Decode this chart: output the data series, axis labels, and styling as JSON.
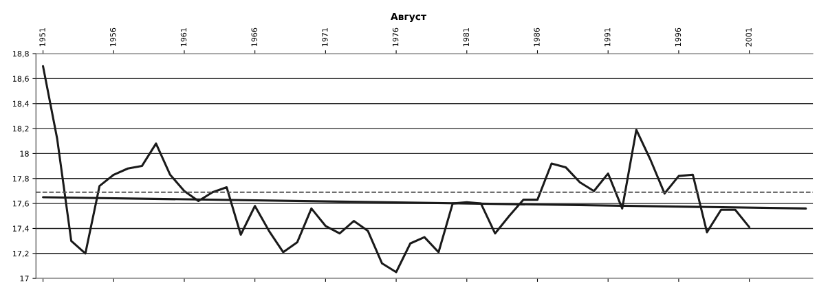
{
  "chart_data": {
    "type": "line",
    "title": "Август",
    "x": [
      1951,
      1952,
      1953,
      1954,
      1955,
      1956,
      1957,
      1958,
      1959,
      1960,
      1961,
      1962,
      1963,
      1964,
      1965,
      1966,
      1967,
      1968,
      1969,
      1970,
      1971,
      1972,
      1973,
      1974,
      1975,
      1976,
      1977,
      1978,
      1979,
      1980,
      1981,
      1982,
      1983,
      1984,
      1985,
      1986,
      1987,
      1988,
      1989,
      1990,
      1991,
      1992,
      1993,
      1994,
      1995,
      1996,
      1997,
      1998,
      1999,
      2000,
      2001
    ],
    "series": [
      {
        "color": "#1a1a1a",
        "line_style": "solid",
        "values": [
          18.7,
          18.12,
          17.3,
          17.2,
          17.74,
          17.83,
          17.88,
          17.9,
          18.08,
          17.83,
          17.7,
          17.62,
          17.69,
          17.73,
          17.35,
          17.58,
          17.38,
          17.21,
          17.29,
          17.56,
          17.42,
          17.36,
          17.46,
          17.38,
          17.12,
          17.05,
          17.28,
          17.33,
          17.21,
          17.6,
          17.61,
          17.6,
          17.36,
          17.5,
          17.63,
          17.63,
          17.92,
          17.89,
          17.77,
          17.7,
          17.84,
          17.56,
          18.19,
          17.95,
          17.68,
          17.82,
          17.83,
          17.37,
          17.55,
          17.55,
          17.41
        ]
      },
      {
        "type": "line",
        "color": "#1a1a1a",
        "line_style": "solid",
        "x": [
          1951,
          2005
        ],
        "values": [
          17.65,
          17.56
        ]
      }
    ],
    "ref_lines": [
      {
        "axis": "y",
        "value": 17.69,
        "color": "#555555",
        "line_style": "dashed"
      }
    ],
    "xlim": [
      1950.5,
      2005.5
    ],
    "xticks": [
      1951,
      1956,
      1961,
      1966,
      1971,
      1976,
      1981,
      1986,
      1991,
      1996,
      2001
    ],
    "ylim": [
      17,
      18.8
    ],
    "yticks": [
      {
        "value": 17,
        "label": "17"
      },
      {
        "value": 17.2,
        "label": "17,2"
      },
      {
        "value": 17.4,
        "label": "17,4"
      },
      {
        "value": 17.6,
        "label": "17,6"
      },
      {
        "value": 17.8,
        "label": "17,8"
      },
      {
        "value": 18,
        "label": "18"
      },
      {
        "value": 18.2,
        "label": "18,2"
      },
      {
        "value": 18.4,
        "label": "18,4"
      },
      {
        "value": 18.6,
        "label": "18,6"
      },
      {
        "value": 18.8,
        "label": "18,8"
      }
    ],
    "grid": "y",
    "legend": false,
    "marker": "none"
  }
}
